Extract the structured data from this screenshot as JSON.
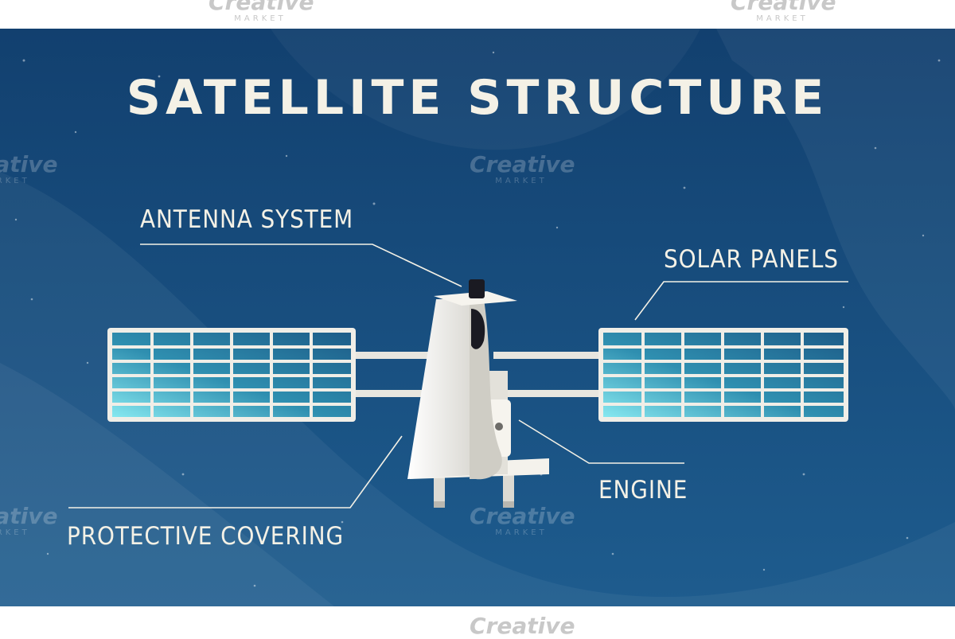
{
  "diagram": {
    "title": "SATELLITE STRUCTURE",
    "labels": {
      "antenna": "ANTENNA SYSTEM",
      "solar": "SOLAR PANELS",
      "engine": "ENGINE",
      "covering": "PROTECTIVE COVERING"
    }
  },
  "watermark": {
    "brand": "Creative",
    "sub": "MARKET"
  },
  "colors": {
    "background_dark": "#123e6b",
    "background_light": "#1d5b8c",
    "text": "#f4f1e6",
    "panel_glow": "#7fe3ec",
    "body": "#e8e6df"
  }
}
